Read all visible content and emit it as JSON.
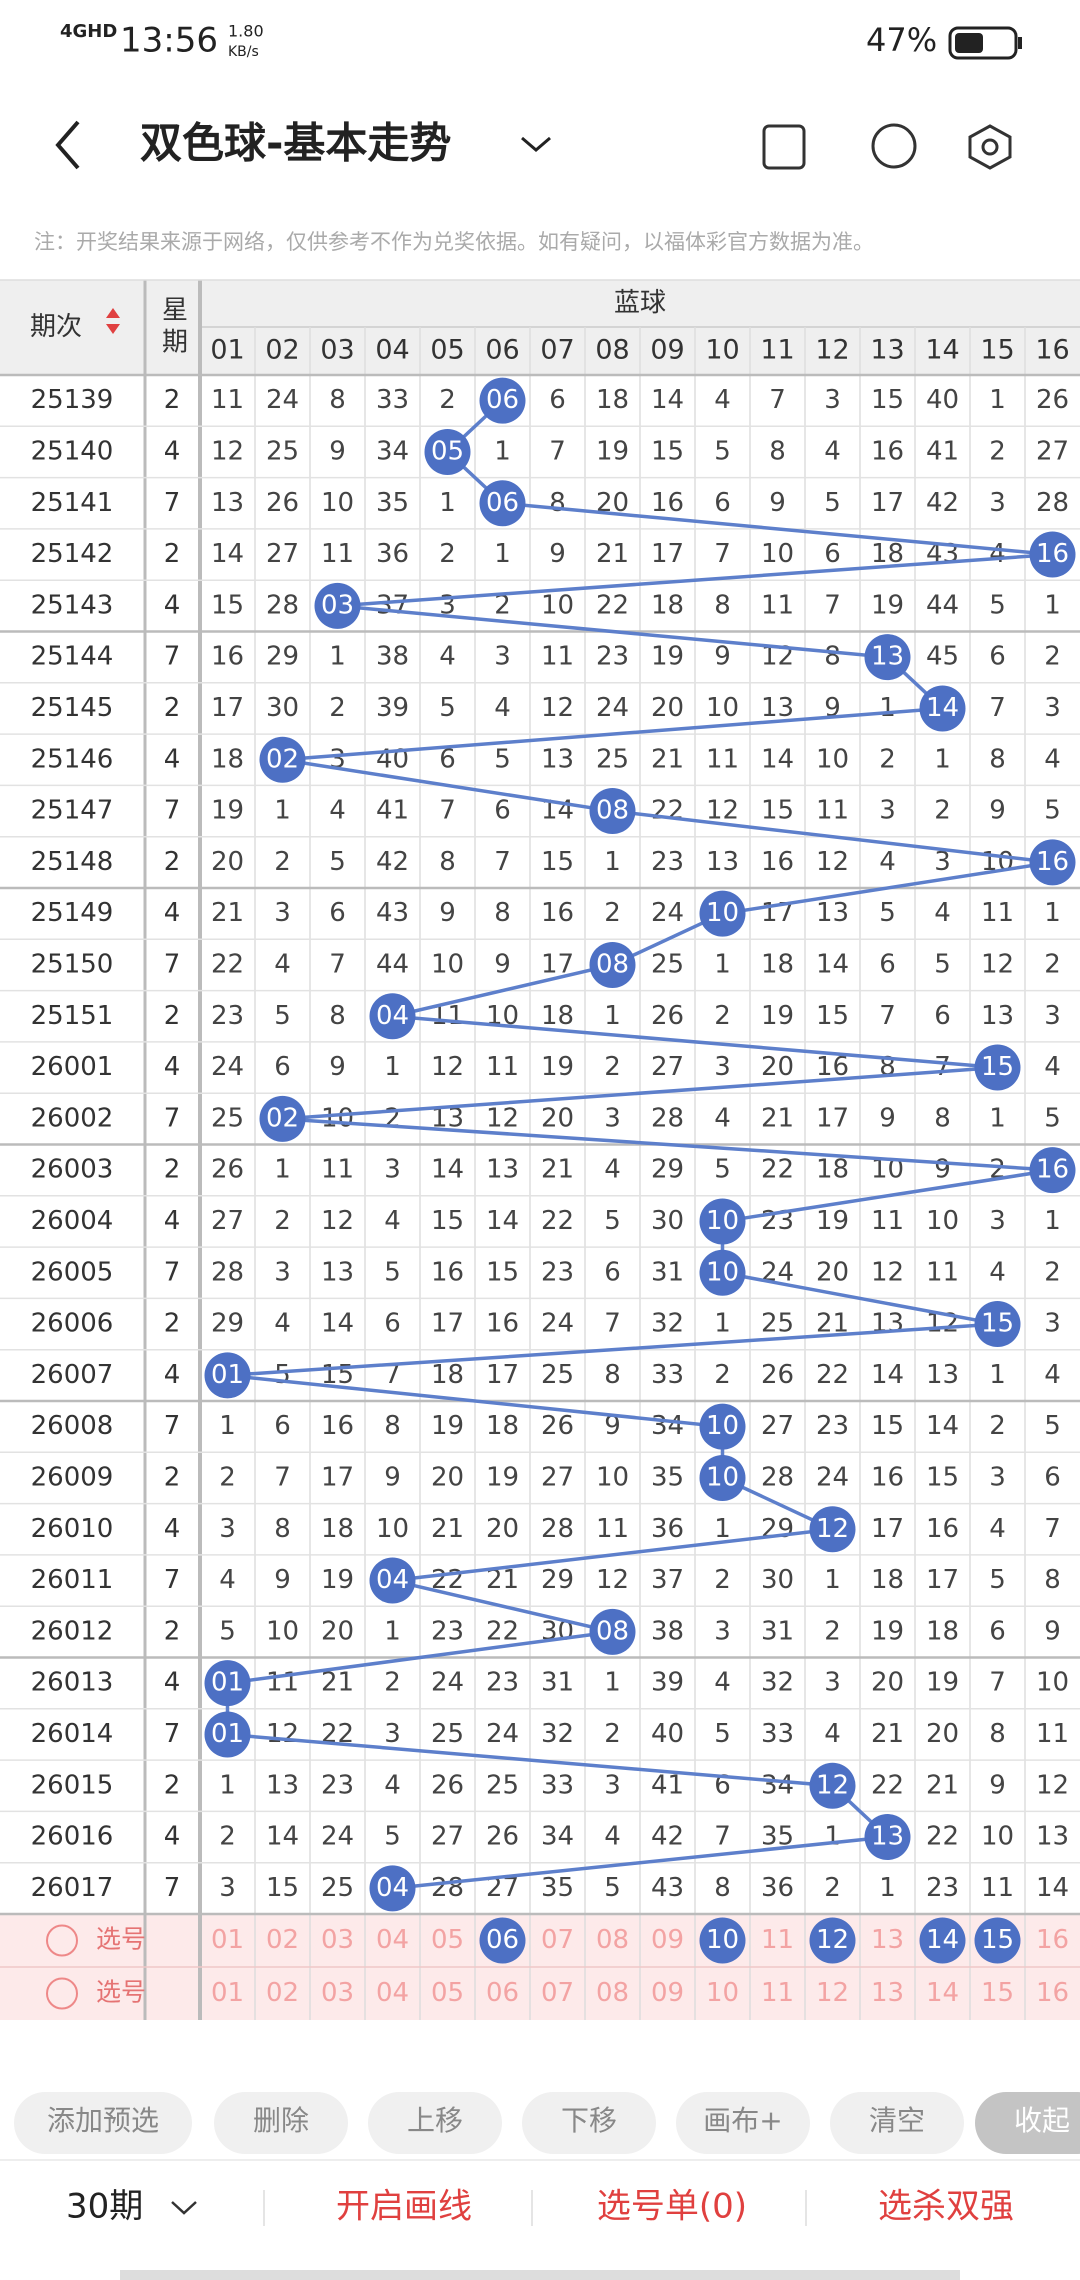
{
  "status": {
    "network": "4GHD",
    "time": "13:56",
    "speed": "1.80",
    "speed_unit": "KB/s",
    "battery": "47%"
  },
  "header": {
    "title": "双色球-基本走势"
  },
  "note": "注：开奖结果来源于网络，仅供参考不作为兑奖依据。如有疑问，以福体彩官方数据为准。",
  "table": {
    "issue_label": "期次",
    "weekday_label": "星期",
    "group_label": "蓝球",
    "columns": [
      "01",
      "02",
      "03",
      "04",
      "05",
      "06",
      "07",
      "08",
      "09",
      "10",
      "11",
      "12",
      "13",
      "14",
      "15",
      "16"
    ],
    "rows": [
      {
        "issue": "25139",
        "weekday": "2",
        "cells": [
          11,
          24,
          8,
          33,
          2,
          {
            "ball": "06"
          },
          6,
          18,
          14,
          4,
          7,
          3,
          15,
          40,
          1,
          26
        ]
      },
      {
        "issue": "25140",
        "weekday": "4",
        "cells": [
          12,
          25,
          9,
          34,
          {
            "ball": "05"
          },
          1,
          7,
          19,
          15,
          5,
          8,
          4,
          16,
          41,
          2,
          27
        ]
      },
      {
        "issue": "25141",
        "weekday": "7",
        "cells": [
          13,
          26,
          10,
          35,
          1,
          {
            "ball": "06"
          },
          8,
          20,
          16,
          6,
          9,
          5,
          17,
          42,
          3,
          28
        ]
      },
      {
        "issue": "25142",
        "weekday": "2",
        "cells": [
          14,
          27,
          11,
          36,
          2,
          1,
          9,
          21,
          17,
          7,
          10,
          6,
          18,
          43,
          4,
          {
            "ball": "16"
          }
        ]
      },
      {
        "issue": "25143",
        "weekday": "4",
        "cells": [
          15,
          28,
          {
            "ball": "03"
          },
          37,
          3,
          2,
          10,
          22,
          18,
          8,
          11,
          7,
          19,
          44,
          5,
          1
        ]
      },
      {
        "issue": "25144",
        "weekday": "7",
        "cells": [
          16,
          29,
          1,
          38,
          4,
          3,
          11,
          23,
          19,
          9,
          12,
          8,
          {
            "ball": "13"
          },
          45,
          6,
          2
        ]
      },
      {
        "issue": "25145",
        "weekday": "2",
        "cells": [
          17,
          30,
          2,
          39,
          5,
          4,
          12,
          24,
          20,
          10,
          13,
          9,
          1,
          {
            "ball": "14"
          },
          7,
          3
        ]
      },
      {
        "issue": "25146",
        "weekday": "4",
        "cells": [
          18,
          {
            "ball": "02"
          },
          3,
          40,
          6,
          5,
          13,
          25,
          21,
          11,
          14,
          10,
          2,
          1,
          8,
          4
        ]
      },
      {
        "issue": "25147",
        "weekday": "7",
        "cells": [
          19,
          1,
          4,
          41,
          7,
          6,
          14,
          {
            "ball": "08"
          },
          22,
          12,
          15,
          11,
          3,
          2,
          9,
          5
        ]
      },
      {
        "issue": "25148",
        "weekday": "2",
        "cells": [
          20,
          2,
          5,
          42,
          8,
          7,
          15,
          1,
          23,
          13,
          16,
          12,
          4,
          3,
          10,
          {
            "ball": "16"
          }
        ]
      },
      {
        "issue": "25149",
        "weekday": "4",
        "cells": [
          21,
          3,
          6,
          43,
          9,
          8,
          16,
          2,
          24,
          {
            "ball": "10"
          },
          17,
          13,
          5,
          4,
          11,
          1
        ]
      },
      {
        "issue": "25150",
        "weekday": "7",
        "cells": [
          22,
          4,
          7,
          44,
          10,
          9,
          17,
          {
            "ball": "08"
          },
          25,
          1,
          18,
          14,
          6,
          5,
          12,
          2
        ]
      },
      {
        "issue": "25151",
        "weekday": "2",
        "cells": [
          23,
          5,
          8,
          {
            "ball": "04"
          },
          11,
          10,
          18,
          1,
          26,
          2,
          19,
          15,
          7,
          6,
          13,
          3
        ]
      },
      {
        "issue": "26001",
        "weekday": "4",
        "cells": [
          24,
          6,
          9,
          1,
          12,
          11,
          19,
          2,
          27,
          3,
          20,
          16,
          8,
          7,
          {
            "ball": "15"
          },
          4
        ]
      },
      {
        "issue": "26002",
        "weekday": "7",
        "cells": [
          25,
          {
            "ball": "02"
          },
          10,
          2,
          13,
          12,
          20,
          3,
          28,
          4,
          21,
          17,
          9,
          8,
          1,
          5
        ]
      },
      {
        "issue": "26003",
        "weekday": "2",
        "cells": [
          26,
          1,
          11,
          3,
          14,
          13,
          21,
          4,
          29,
          5,
          22,
          18,
          10,
          9,
          2,
          {
            "ball": "16"
          }
        ]
      },
      {
        "issue": "26004",
        "weekday": "4",
        "cells": [
          27,
          2,
          12,
          4,
          15,
          14,
          22,
          5,
          30,
          {
            "ball": "10"
          },
          23,
          19,
          11,
          10,
          3,
          1
        ]
      },
      {
        "issue": "26005",
        "weekday": "7",
        "cells": [
          28,
          3,
          13,
          5,
          16,
          15,
          23,
          6,
          31,
          {
            "ball": "10"
          },
          24,
          20,
          12,
          11,
          4,
          2
        ]
      },
      {
        "issue": "26006",
        "weekday": "2",
        "cells": [
          29,
          4,
          14,
          6,
          17,
          16,
          24,
          7,
          32,
          1,
          25,
          21,
          13,
          12,
          {
            "ball": "15"
          },
          3
        ]
      },
      {
        "issue": "26007",
        "weekday": "4",
        "cells": [
          {
            "ball": "01"
          },
          5,
          15,
          7,
          18,
          17,
          25,
          8,
          33,
          2,
          26,
          22,
          14,
          13,
          1,
          4
        ]
      },
      {
        "issue": "26008",
        "weekday": "7",
        "cells": [
          1,
          6,
          16,
          8,
          19,
          18,
          26,
          9,
          34,
          {
            "ball": "10"
          },
          27,
          23,
          15,
          14,
          2,
          5
        ]
      },
      {
        "issue": "26009",
        "weekday": "2",
        "cells": [
          2,
          7,
          17,
          9,
          20,
          19,
          27,
          10,
          35,
          {
            "ball": "10"
          },
          28,
          24,
          16,
          15,
          3,
          6
        ]
      },
      {
        "issue": "26010",
        "weekday": "4",
        "cells": [
          3,
          8,
          18,
          10,
          21,
          20,
          28,
          11,
          36,
          1,
          29,
          {
            "ball": "12"
          },
          17,
          16,
          4,
          7
        ]
      },
      {
        "issue": "26011",
        "weekday": "7",
        "cells": [
          4,
          9,
          19,
          {
            "ball": "04"
          },
          22,
          21,
          29,
          12,
          37,
          2,
          30,
          1,
          18,
          17,
          5,
          8
        ]
      },
      {
        "issue": "26012",
        "weekday": "2",
        "cells": [
          5,
          10,
          20,
          1,
          23,
          22,
          30,
          {
            "ball": "08"
          },
          38,
          3,
          31,
          2,
          19,
          18,
          6,
          9
        ]
      },
      {
        "issue": "26013",
        "weekday": "4",
        "cells": [
          {
            "ball": "01"
          },
          11,
          21,
          2,
          24,
          23,
          31,
          1,
          39,
          4,
          32,
          3,
          20,
          19,
          7,
          10
        ]
      },
      {
        "issue": "26014",
        "weekday": "7",
        "cells": [
          {
            "ball": "01"
          },
          12,
          22,
          3,
          25,
          24,
          32,
          2,
          40,
          5,
          33,
          4,
          21,
          20,
          8,
          11
        ]
      },
      {
        "issue": "26015",
        "weekday": "2",
        "cells": [
          1,
          13,
          23,
          4,
          26,
          25,
          33,
          3,
          41,
          6,
          34,
          {
            "ball": "12"
          },
          22,
          21,
          9,
          12
        ]
      },
      {
        "issue": "26016",
        "weekday": "4",
        "cells": [
          2,
          14,
          24,
          5,
          27,
          26,
          34,
          4,
          42,
          7,
          35,
          1,
          {
            "ball": "13"
          },
          22,
          10,
          13
        ]
      },
      {
        "issue": "26017",
        "weekday": "7",
        "cells": [
          3,
          15,
          25,
          {
            "ball": "04"
          },
          28,
          27,
          35,
          5,
          43,
          8,
          36,
          2,
          1,
          23,
          11,
          14
        ]
      }
    ],
    "select_rows": [
      {
        "label": "选号",
        "numbers": [
          "01",
          "02",
          "03",
          "04",
          "05",
          {
            "ball": "06"
          },
          "07",
          "08",
          "09",
          {
            "ball": "10"
          },
          "11",
          {
            "ball": "12"
          },
          "13",
          {
            "ball": "14"
          },
          {
            "ball": "15"
          },
          "16"
        ]
      },
      {
        "label": "选号",
        "numbers": [
          "01",
          "02",
          "03",
          "04",
          "05",
          "06",
          "07",
          "08",
          "09",
          "10",
          "11",
          "12",
          "13",
          "14",
          "15",
          "16"
        ]
      }
    ]
  },
  "toolbar": [
    "添加预选",
    "删除",
    "上移",
    "下移",
    "画布+",
    "清空",
    "收起"
  ],
  "footer": {
    "period": "30期",
    "actions": [
      "开启画线",
      "选号单(0)",
      "选杀双强"
    ]
  }
}
